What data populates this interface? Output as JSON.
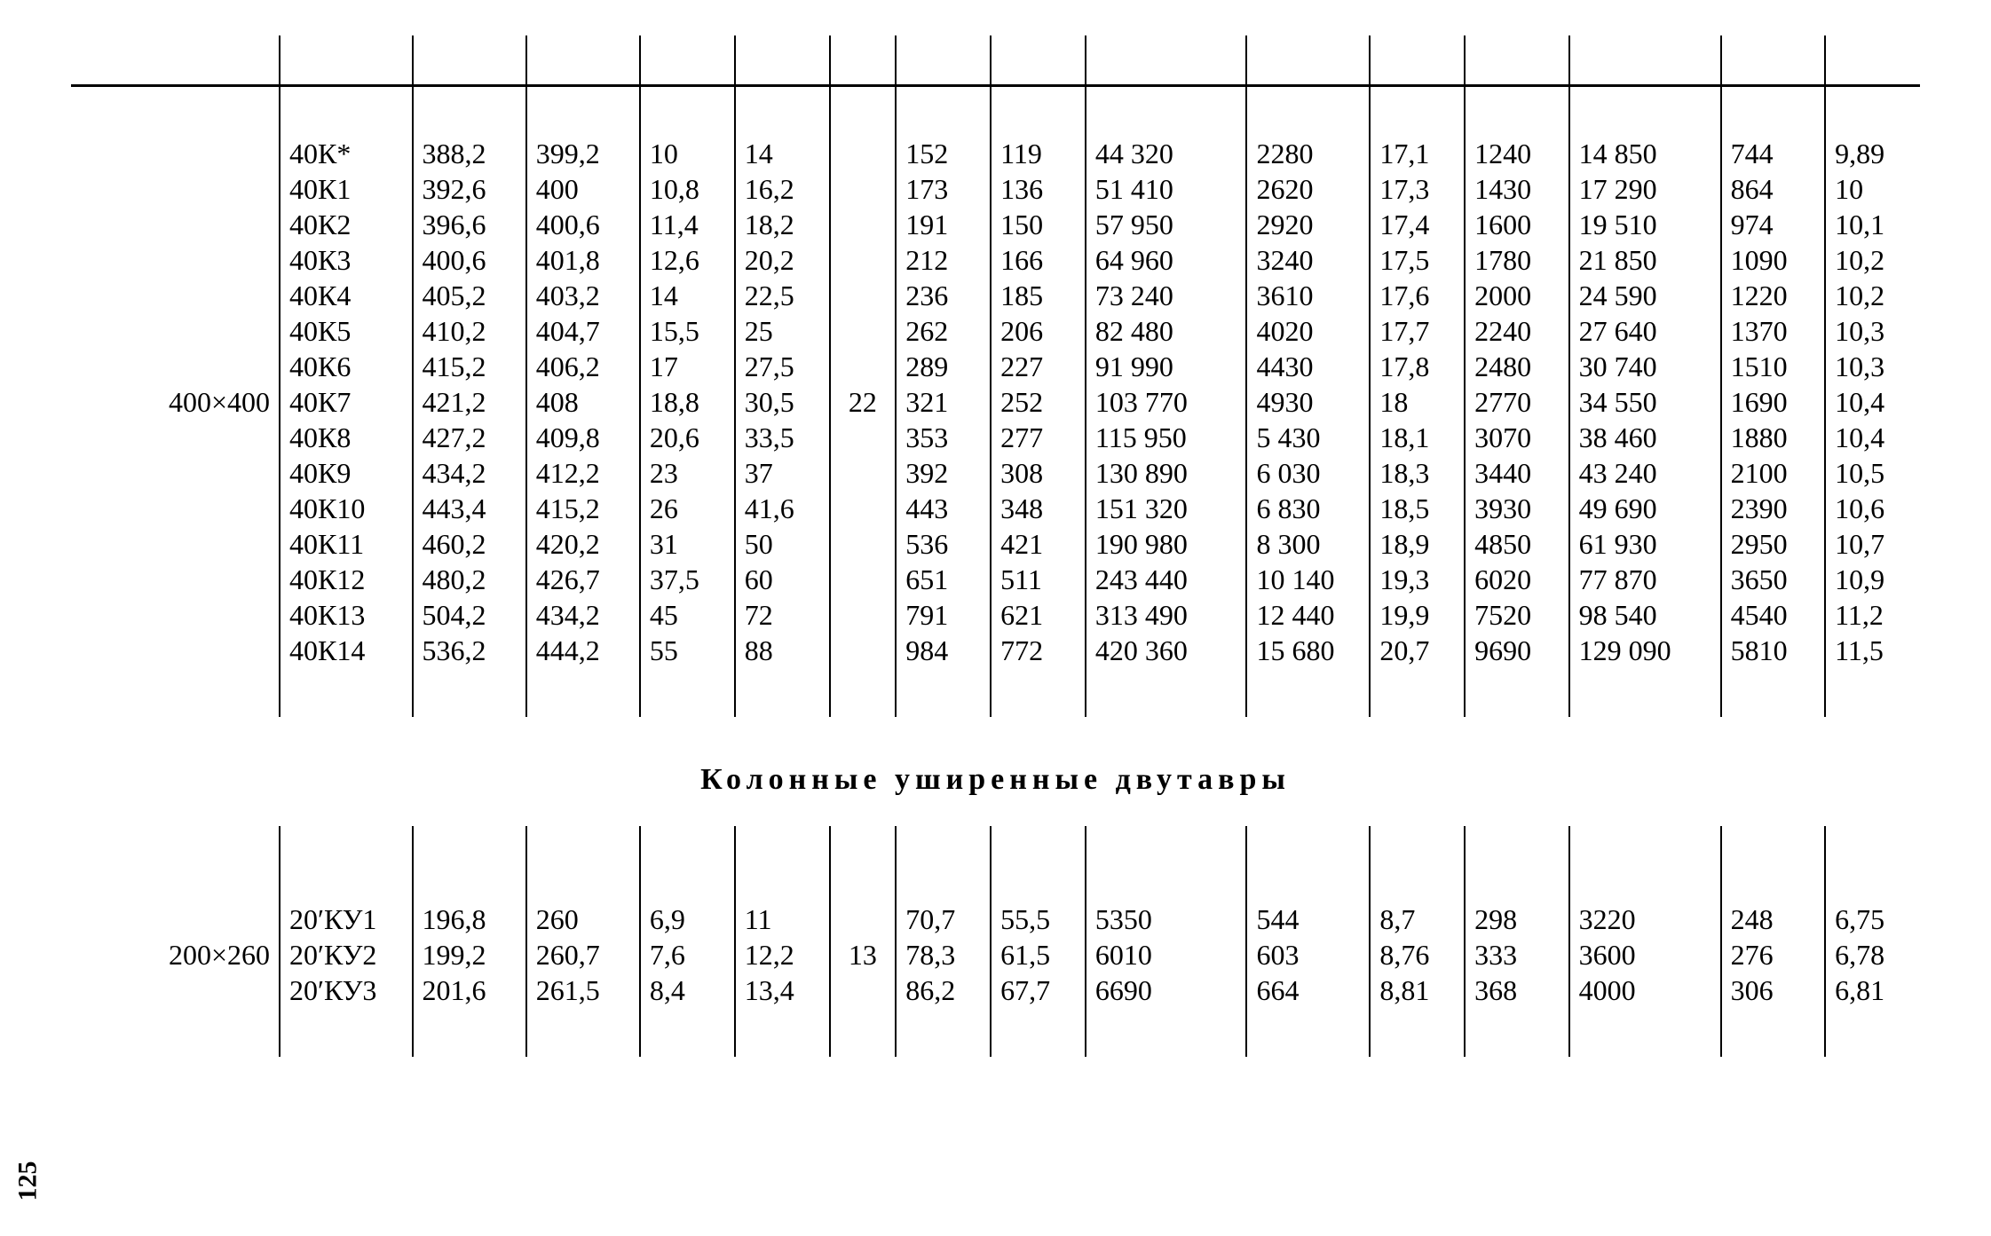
{
  "page_number": "125",
  "section1": {
    "group_label": "400×400",
    "rows": [
      {
        "code": "40К*",
        "h": "388,2",
        "b": "399,2",
        "tw": "10",
        "tf": "14",
        "A": "152",
        "m": "119",
        "Ix": "44 320",
        "Wx": "2280",
        "ix": "17,1",
        "Sx": "1240",
        "Iy": "14 850",
        "Wy": "744",
        "iy": "9,89"
      },
      {
        "code": "40К1",
        "h": "392,6",
        "b": "400",
        "tw": "10,8",
        "tf": "16,2",
        "A": "173",
        "m": "136",
        "Ix": "51 410",
        "Wx": "2620",
        "ix": "17,3",
        "Sx": "1430",
        "Iy": "17 290",
        "Wy": "864",
        "iy": "10"
      },
      {
        "code": "40К2",
        "h": "396,6",
        "b": "400,6",
        "tw": "11,4",
        "tf": "18,2",
        "A": "191",
        "m": "150",
        "Ix": "57 950",
        "Wx": "2920",
        "ix": "17,4",
        "Sx": "1600",
        "Iy": "19 510",
        "Wy": "974",
        "iy": "10,1"
      },
      {
        "code": "40К3",
        "h": "400,6",
        "b": "401,8",
        "tw": "12,6",
        "tf": "20,2",
        "A": "212",
        "m": "166",
        "Ix": "64 960",
        "Wx": "3240",
        "ix": "17,5",
        "Sx": "1780",
        "Iy": "21 850",
        "Wy": "1090",
        "iy": "10,2"
      },
      {
        "code": "40К4",
        "h": "405,2",
        "b": "403,2",
        "tw": "14",
        "tf": "22,5",
        "A": "236",
        "m": "185",
        "Ix": "73 240",
        "Wx": "3610",
        "ix": "17,6",
        "Sx": "2000",
        "Iy": "24 590",
        "Wy": "1220",
        "iy": "10,2"
      },
      {
        "code": "40К5",
        "h": "410,2",
        "b": "404,7",
        "tw": "15,5",
        "tf": "25",
        "A": "262",
        "m": "206",
        "Ix": "82 480",
        "Wx": "4020",
        "ix": "17,7",
        "Sx": "2240",
        "Iy": "27 640",
        "Wy": "1370",
        "iy": "10,3"
      },
      {
        "code": "40К6",
        "h": "415,2",
        "b": "406,2",
        "tw": "17",
        "tf": "27,5",
        "A": "289",
        "m": "227",
        "Ix": "91 990",
        "Wx": "4430",
        "ix": "17,8",
        "Sx": "2480",
        "Iy": "30 740",
        "Wy": "1510",
        "iy": "10,3"
      },
      {
        "code": "40К7",
        "h": "421,2",
        "b": "408",
        "tw": "18,8",
        "tf": "30,5",
        "A": "321",
        "m": "252",
        "Ix": "103 770",
        "Wx": "4930",
        "ix": "18",
        "Sx": "2770",
        "Iy": "34 550",
        "Wy": "1690",
        "iy": "10,4"
      },
      {
        "code": "40К8",
        "h": "427,2",
        "b": "409,8",
        "tw": "20,6",
        "tf": "33,5",
        "A": "353",
        "m": "277",
        "Ix": "115 950",
        "Wx": "5 430",
        "ix": "18,1",
        "Sx": "3070",
        "Iy": "38 460",
        "Wy": "1880",
        "iy": "10,4"
      },
      {
        "code": "40К9",
        "h": "434,2",
        "b": "412,2",
        "tw": "23",
        "tf": "37",
        "A": "392",
        "m": "308",
        "Ix": "130 890",
        "Wx": "6 030",
        "ix": "18,3",
        "Sx": "3440",
        "Iy": "43 240",
        "Wy": "2100",
        "iy": "10,5"
      },
      {
        "code": "40К10",
        "h": "443,4",
        "b": "415,2",
        "tw": "26",
        "tf": "41,6",
        "A": "443",
        "m": "348",
        "Ix": "151 320",
        "Wx": "6 830",
        "ix": "18,5",
        "Sx": "3930",
        "Iy": "49 690",
        "Wy": "2390",
        "iy": "10,6"
      },
      {
        "code": "40К11",
        "h": "460,2",
        "b": "420,2",
        "tw": "31",
        "tf": "50",
        "A": "536",
        "m": "421",
        "Ix": "190 980",
        "Wx": "8 300",
        "ix": "18,9",
        "Sx": "4850",
        "Iy": "61 930",
        "Wy": "2950",
        "iy": "10,7"
      },
      {
        "code": "40К12",
        "h": "480,2",
        "b": "426,7",
        "tw": "37,5",
        "tf": "60",
        "A": "651",
        "m": "511",
        "Ix": "243 440",
        "Wx": "10 140",
        "ix": "19,3",
        "Sx": "6020",
        "Iy": "77 870",
        "Wy": "3650",
        "iy": "10,9"
      },
      {
        "code": "40К13",
        "h": "504,2",
        "b": "434,2",
        "tw": "45",
        "tf": "72",
        "A": "791",
        "m": "621",
        "Ix": "313 490",
        "Wx": "12 440",
        "ix": "19,9",
        "Sx": "7520",
        "Iy": "98 540",
        "Wy": "4540",
        "iy": "11,2"
      },
      {
        "code": "40К14",
        "h": "536,2",
        "b": "444,2",
        "tw": "55",
        "tf": "88",
        "A": "984",
        "m": "772",
        "Ix": "420 360",
        "Wx": "15 680",
        "ix": "20,7",
        "Sx": "9690",
        "Iy": "129 090",
        "Wy": "5810",
        "iy": "11,5"
      }
    ],
    "r": "22"
  },
  "section2_title": "Колонные уширенные двутавры",
  "section2": {
    "group_label": "200×260",
    "rows": [
      {
        "code": "20′КУ1",
        "h": "196,8",
        "b": "260",
        "tw": "6,9",
        "tf": "11",
        "A": "70,7",
        "m": "55,5",
        "Ix": "5350",
        "Wx": "544",
        "ix": "8,7",
        "Sx": "298",
        "Iy": "3220",
        "Wy": "248",
        "iy": "6,75"
      },
      {
        "code": "20′КУ2",
        "h": "199,2",
        "b": "260,7",
        "tw": "7,6",
        "tf": "12,2",
        "A": "78,3",
        "m": "61,5",
        "Ix": "6010",
        "Wx": "603",
        "ix": "8,76",
        "Sx": "333",
        "Iy": "3600",
        "Wy": "276",
        "iy": "6,78"
      },
      {
        "code": "20′КУ3",
        "h": "201,6",
        "b": "261,5",
        "tw": "8,4",
        "tf": "13,4",
        "A": "86,2",
        "m": "67,7",
        "Ix": "6690",
        "Wx": "664",
        "ix": "8,81",
        "Sx": "368",
        "Iy": "4000",
        "Wy": "306",
        "iy": "6,81"
      }
    ],
    "r": "13"
  },
  "colors": {
    "text": "#000000",
    "background": "#ffffff",
    "rule": "#000000"
  }
}
